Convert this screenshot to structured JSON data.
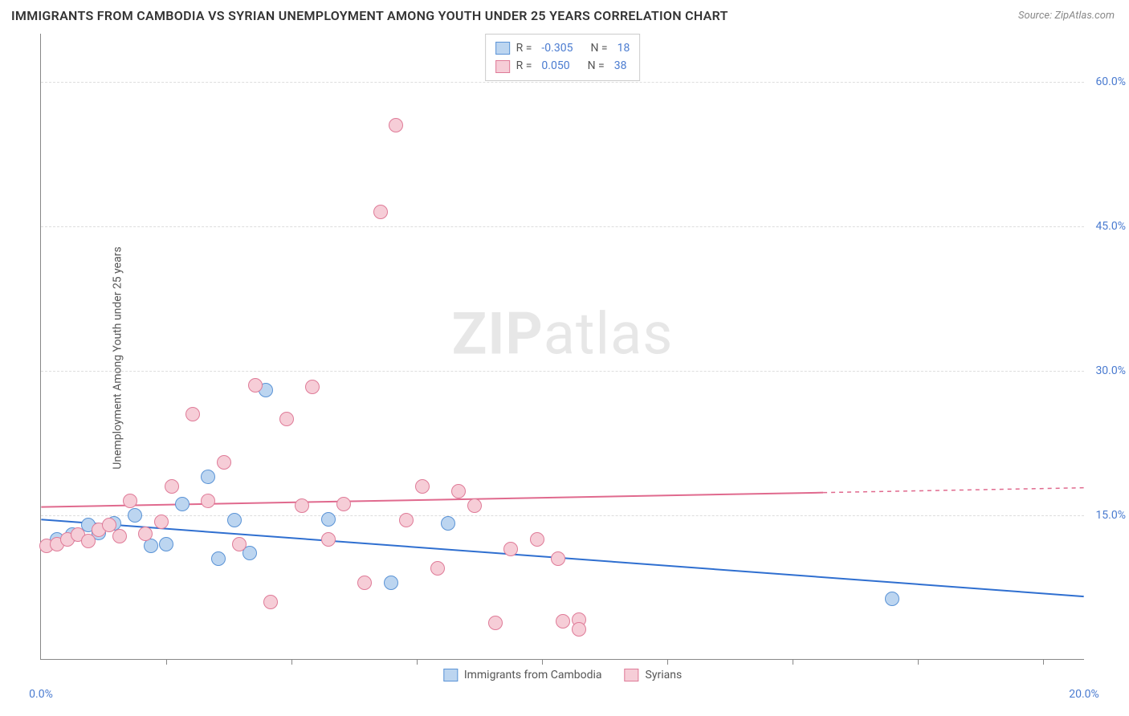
{
  "title": "IMMIGRANTS FROM CAMBODIA VS SYRIAN UNEMPLOYMENT AMONG YOUTH UNDER 25 YEARS CORRELATION CHART",
  "source_label": "Source:",
  "source_value": "ZipAtlas.com",
  "ylabel": "Unemployment Among Youth under 25 years",
  "watermark_bold": "ZIP",
  "watermark_rest": "atlas",
  "chart": {
    "type": "scatter",
    "xlim": [
      0,
      20
    ],
    "ylim": [
      0,
      65
    ],
    "y_ticks": [
      15,
      30,
      45,
      60
    ],
    "y_tick_labels": [
      "15.0%",
      "30.0%",
      "45.0%",
      "60.0%"
    ],
    "x_tick_positions": [
      2.4,
      4.8,
      7.2,
      9.6,
      12.0,
      14.4,
      16.8,
      19.2
    ],
    "x_end_labels": [
      "0.0%",
      "20.0%"
    ],
    "grid_color": "#dddddd",
    "background_color": "#ffffff",
    "axis_color": "#888888",
    "marker_radius": 9,
    "marker_border_width": 1.5,
    "trend_line_width": 2,
    "series": [
      {
        "name": "Immigrants from Cambodia",
        "fill": "#bcd5f0",
        "stroke": "#5a93d6",
        "line_color": "#2f6fd0",
        "r_value": "-0.305",
        "n_value": "18",
        "trend": {
          "y_at_x0": 14.5,
          "y_at_x20": 6.5,
          "solid_until_x": 20
        },
        "points": [
          [
            0.3,
            12.5
          ],
          [
            0.6,
            13.0
          ],
          [
            0.9,
            14.0
          ],
          [
            1.1,
            13.2
          ],
          [
            1.4,
            14.2
          ],
          [
            1.8,
            15.0
          ],
          [
            2.1,
            11.8
          ],
          [
            2.4,
            12.0
          ],
          [
            2.7,
            16.2
          ],
          [
            3.2,
            19.0
          ],
          [
            3.4,
            10.5
          ],
          [
            3.7,
            14.5
          ],
          [
            4.0,
            11.1
          ],
          [
            4.3,
            28.0
          ],
          [
            5.5,
            14.6
          ],
          [
            6.7,
            8.0
          ],
          [
            7.8,
            14.2
          ],
          [
            16.3,
            6.3
          ]
        ]
      },
      {
        "name": "Syrians",
        "fill": "#f6cdd7",
        "stroke": "#df7b98",
        "line_color": "#e06a8e",
        "r_value": "0.050",
        "n_value": "38",
        "trend": {
          "y_at_x0": 15.8,
          "y_at_x20": 17.8,
          "solid_until_x": 15
        },
        "points": [
          [
            0.1,
            11.8
          ],
          [
            0.3,
            12.0
          ],
          [
            0.5,
            12.5
          ],
          [
            0.7,
            13.0
          ],
          [
            0.9,
            12.3
          ],
          [
            1.1,
            13.5
          ],
          [
            1.3,
            14.0
          ],
          [
            1.5,
            12.8
          ],
          [
            1.7,
            16.5
          ],
          [
            2.0,
            13.1
          ],
          [
            2.3,
            14.3
          ],
          [
            2.5,
            18.0
          ],
          [
            2.9,
            25.5
          ],
          [
            3.2,
            16.5
          ],
          [
            3.5,
            20.5
          ],
          [
            3.8,
            12.0
          ],
          [
            4.1,
            28.5
          ],
          [
            4.4,
            6.0
          ],
          [
            4.7,
            25.0
          ],
          [
            5.0,
            16.0
          ],
          [
            5.2,
            28.3
          ],
          [
            5.5,
            12.5
          ],
          [
            5.8,
            16.2
          ],
          [
            6.2,
            8.0
          ],
          [
            6.5,
            46.5
          ],
          [
            6.8,
            55.5
          ],
          [
            7.0,
            14.5
          ],
          [
            7.3,
            18.0
          ],
          [
            7.6,
            9.5
          ],
          [
            8.0,
            17.5
          ],
          [
            8.3,
            16.0
          ],
          [
            8.7,
            3.8
          ],
          [
            9.0,
            11.5
          ],
          [
            9.5,
            12.5
          ],
          [
            9.9,
            10.5
          ],
          [
            10.0,
            4.0
          ],
          [
            10.3,
            4.2
          ],
          [
            10.3,
            3.2
          ]
        ]
      }
    ]
  },
  "legend_top": {
    "r_label": "R =",
    "n_label": "N ="
  }
}
